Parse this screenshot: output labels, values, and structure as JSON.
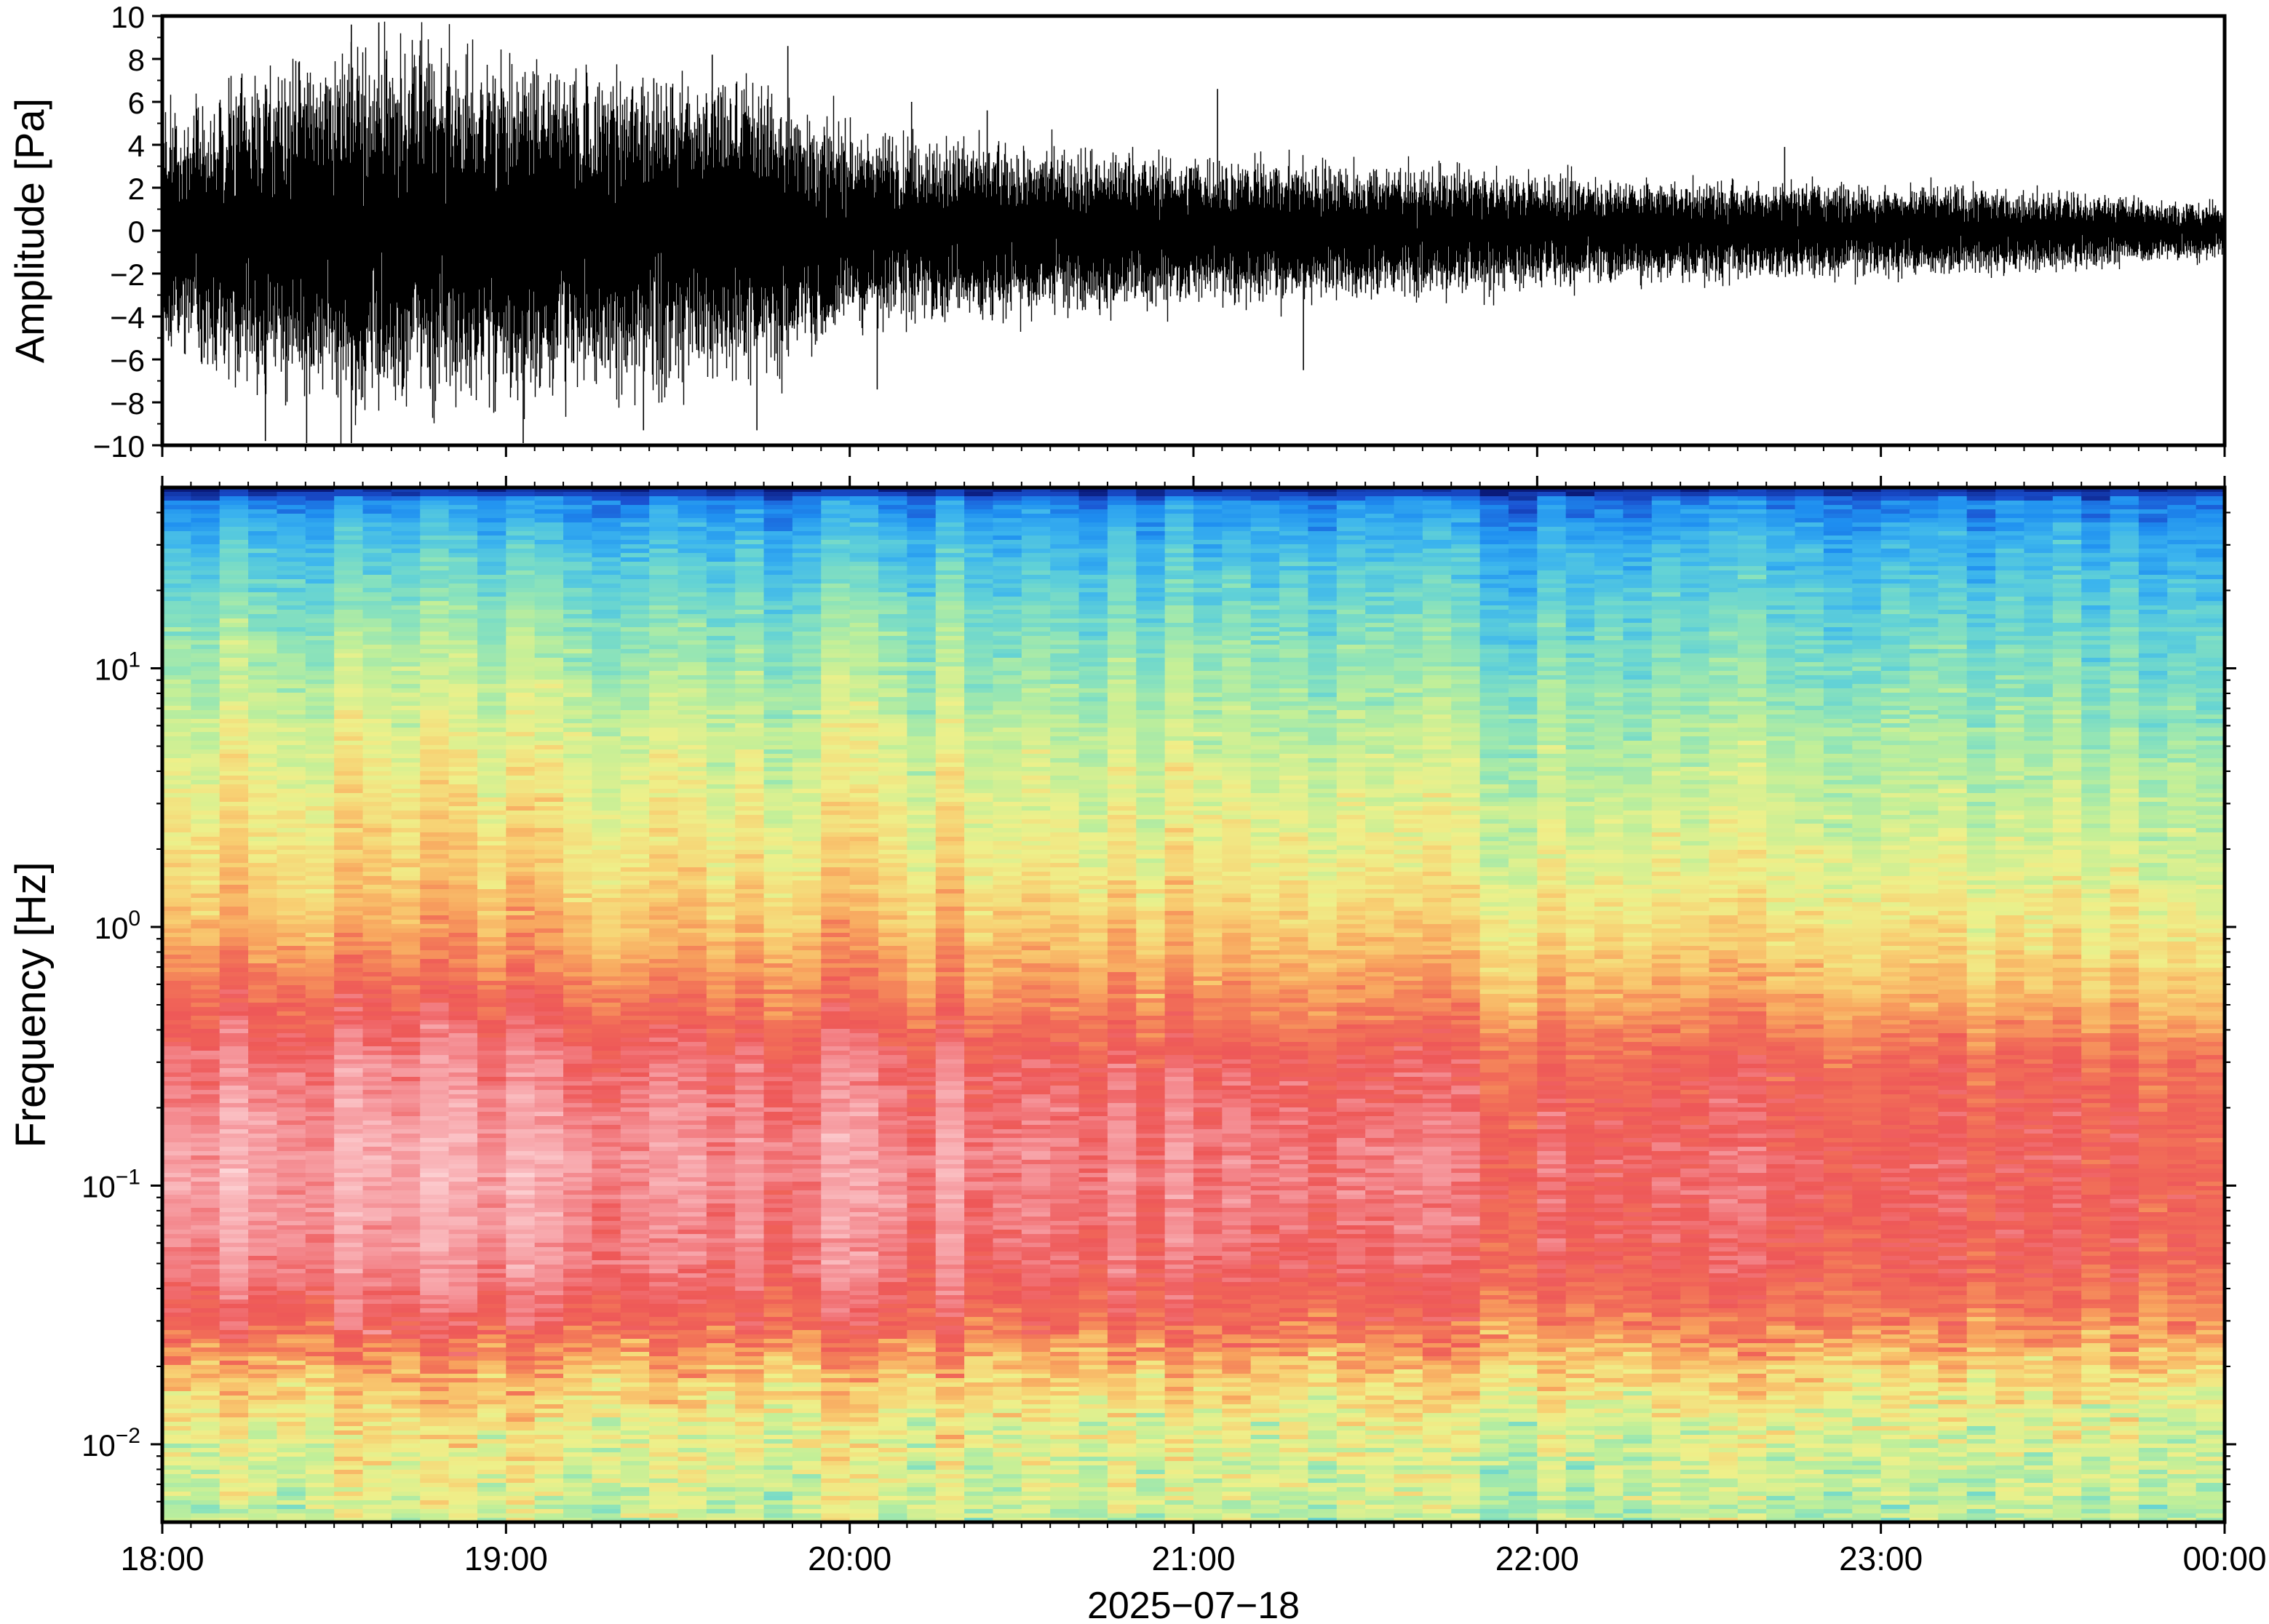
{
  "chart_data": [
    {
      "type": "line",
      "ylabel": "Amplitude [Pa]",
      "ylim": [
        -10,
        10
      ],
      "yticks": [
        10,
        8,
        6,
        4,
        2,
        0,
        -2,
        -4,
        -6,
        -8,
        -10
      ],
      "ytick_labels": [
        "10",
        "8",
        "6",
        "4",
        "2",
        "0",
        "−2",
        "−4",
        "−6",
        "−8",
        "−10"
      ],
      "x_range_hours": [
        18,
        24
      ],
      "series": [
        {
          "x_hours": [
            18.0,
            18.25,
            18.5,
            18.75,
            19.0,
            19.25,
            19.5,
            19.75,
            20.0,
            20.25,
            20.5,
            20.75,
            21.0,
            21.25,
            21.5,
            21.75,
            22.0,
            22.25,
            22.5,
            22.75,
            23.0,
            23.25,
            23.5,
            23.75,
            24.0
          ],
          "envelope_amplitude": [
            3.5,
            4.5,
            5.5,
            5.5,
            5.0,
            4.8,
            4.8,
            4.5,
            3.0,
            2.8,
            2.5,
            2.5,
            2.2,
            2.2,
            2.0,
            1.9,
            1.7,
            1.6,
            1.5,
            1.5,
            1.4,
            1.3,
            1.2,
            1.0,
            0.8
          ],
          "peak_values": [
            {
              "x_hours": 18.3,
              "y": 6.8
            },
            {
              "x_hours": 18.55,
              "y": 9.6
            },
            {
              "x_hours": 18.63,
              "y": 9.7
            },
            {
              "x_hours": 19.43,
              "y": 7.1
            },
            {
              "x_hours": 19.6,
              "y": 8.2
            },
            {
              "x_hours": 19.82,
              "y": 8.6
            },
            {
              "x_hours": 20.18,
              "y": 6.0
            },
            {
              "x_hours": 20.4,
              "y": 5.6
            },
            {
              "x_hours": 21.07,
              "y": 6.6
            },
            {
              "x_hours": 22.72,
              "y": 3.9
            },
            {
              "x_hours": 18.3,
              "y": -9.8
            },
            {
              "x_hours": 18.42,
              "y": -9.9
            },
            {
              "x_hours": 18.55,
              "y": -9.9
            },
            {
              "x_hours": 19.05,
              "y": -9.9
            },
            {
              "x_hours": 19.4,
              "y": -9.3
            },
            {
              "x_hours": 19.73,
              "y": -9.3
            },
            {
              "x_hours": 20.08,
              "y": -7.4
            },
            {
              "x_hours": 21.32,
              "y": -6.5
            }
          ]
        }
      ]
    },
    {
      "type": "heatmap",
      "ylabel": "Frequency [Hz]",
      "yscale": "log",
      "ylim": [
        0.005,
        50
      ],
      "yticks": [
        {
          "value": 10,
          "mantissa": "10",
          "exponent": "1"
        },
        {
          "value": 1,
          "mantissa": "10",
          "exponent": "0"
        },
        {
          "value": 0.1,
          "mantissa": "10",
          "exponent": "−1"
        },
        {
          "value": 0.01,
          "mantissa": "10",
          "exponent": "−2"
        }
      ],
      "x_range_hours": [
        18,
        24
      ],
      "xtick_labels": [
        "18:00",
        "19:00",
        "20:00",
        "21:00",
        "22:00",
        "23:00",
        "00:00"
      ],
      "xlabel": "2025−07−18",
      "colormap": [
        "#0a1a7a",
        "#1a50d0",
        "#1e8ef0",
        "#3bb4ee",
        "#62d2d6",
        "#8fe4b8",
        "#c2ef98",
        "#eef08a",
        "#f8cf72",
        "#f8a45e",
        "#f27258",
        "#ee5858",
        "#f48b90",
        "#f9b4b8",
        "#fdd4d6"
      ],
      "level_profile_by_frequency": {
        "frequency_hz": [
          50,
          44,
          30,
          15,
          5,
          1.6,
          0.9,
          0.55,
          0.3,
          0.12,
          0.05,
          0.028,
          0.02,
          0.012,
          0.005
        ],
        "level_at_18h": [
          0.0,
          0.16,
          0.26,
          0.38,
          0.5,
          0.58,
          0.66,
          0.76,
          0.86,
          0.93,
          0.88,
          0.78,
          0.64,
          0.52,
          0.46
        ],
        "level_at_24h": [
          0.0,
          0.12,
          0.2,
          0.28,
          0.38,
          0.46,
          0.52,
          0.58,
          0.72,
          0.76,
          0.74,
          0.66,
          0.56,
          0.46,
          0.4
        ]
      }
    }
  ]
}
